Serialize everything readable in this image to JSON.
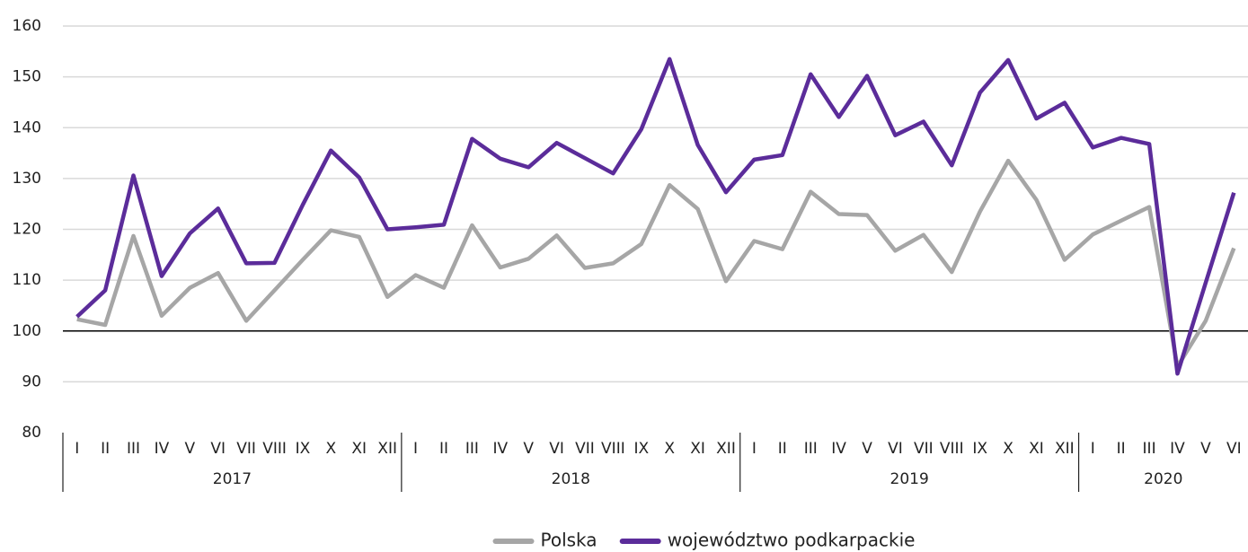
{
  "chart_data": {
    "type": "line",
    "categories": [
      "I",
      "II",
      "III",
      "IV",
      "V",
      "VI",
      "VII",
      "VIII",
      "IX",
      "X",
      "XI",
      "XII",
      "I",
      "II",
      "III",
      "IV",
      "V",
      "VI",
      "VII",
      "VIII",
      "IX",
      "X",
      "XI",
      "XII",
      "I",
      "II",
      "III",
      "IV",
      "V",
      "VI",
      "VII",
      "VIII",
      "IX",
      "X",
      "XI",
      "XII",
      "I",
      "II",
      "III",
      "IV",
      "V",
      "VI"
    ],
    "category_groups": [
      "2017",
      "2018",
      "2019",
      "2020"
    ],
    "series": [
      {
        "name": "Polska",
        "color": "#a6a6a6",
        "values": [
          102.3,
          101.2,
          118.7,
          103,
          108.5,
          111.4,
          102,
          108,
          114,
          119.8,
          118.5,
          106.7,
          111,
          108.5,
          120.8,
          112.5,
          114.2,
          118.8,
          112.4,
          113.3,
          117.1,
          128.7,
          124,
          109.8,
          117.7,
          116.1,
          127.4,
          123,
          122.8,
          115.8,
          118.9,
          111.6,
          123.5,
          133.5,
          125.8,
          114,
          119,
          121.7,
          124.4,
          93,
          102,
          116.3
        ]
      },
      {
        "name": "województwo podkarpackie",
        "color": "#5b2c9a",
        "values": [
          102.8,
          108,
          130.6,
          110.8,
          119.2,
          124.1,
          113.3,
          113.4,
          124.8,
          135.5,
          130.2,
          120,
          120.4,
          120.9,
          137.8,
          133.9,
          132.2,
          137,
          134,
          131,
          139.7,
          153.5,
          136.6,
          127.3,
          133.7,
          134.6,
          150.5,
          142.1,
          150.2,
          138.5,
          141.2,
          132.6,
          146.9,
          153.3,
          141.8,
          144.9,
          136.1,
          138,
          136.8,
          91.6,
          109.5,
          127.2
        ]
      }
    ],
    "ylim": [
      80,
      160
    ],
    "yticks": [
      80,
      90,
      100,
      110,
      120,
      130,
      140,
      150,
      160
    ],
    "reference_line": 100,
    "grid": true,
    "legend": "bottom"
  }
}
